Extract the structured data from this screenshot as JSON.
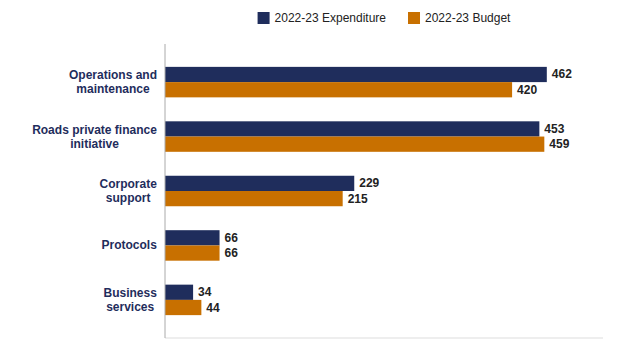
{
  "chart_data": {
    "type": "bar",
    "orientation": "horizontal",
    "categories": [
      "Business\nservices",
      "Protocols",
      "Corporate\nsupport",
      "Roads private finance\ninitiative",
      "Operations and\nmaintenance"
    ],
    "series": [
      {
        "name": "2022-23 Expenditure",
        "color": "#1f2d5c",
        "values": [
          34,
          66,
          229,
          453,
          462
        ]
      },
      {
        "name": "2022-23 Budget",
        "color": "#c87000",
        "values": [
          44,
          66,
          215,
          459,
          420
        ]
      }
    ],
    "xlim": [
      0,
      530
    ],
    "data_labels": true,
    "tick_labels": "y",
    "grid": false,
    "legend": "top"
  }
}
